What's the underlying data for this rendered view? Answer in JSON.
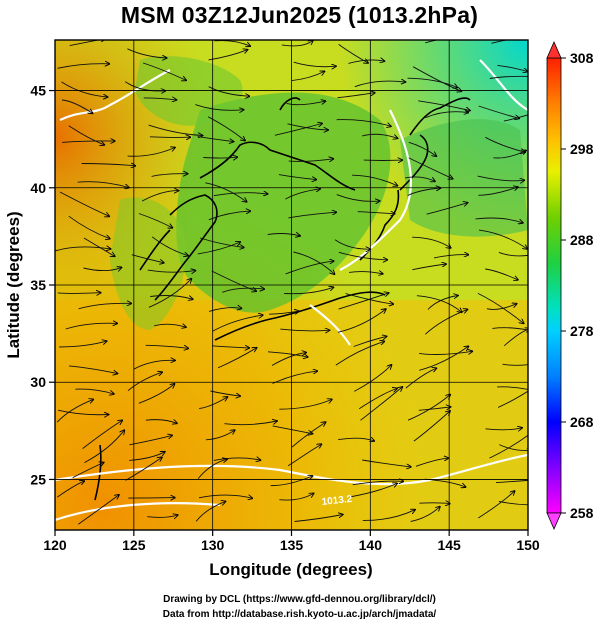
{
  "title": "MSM 03Z12Jun2025 (1013.2hPa)",
  "xaxis": {
    "label": "Longitude (degrees)",
    "ticks": [
      120,
      125,
      130,
      135,
      140,
      145,
      150
    ],
    "range": [
      120,
      150
    ]
  },
  "yaxis": {
    "label": "Latitude  (degrees)",
    "ticks": [
      25,
      30,
      35,
      40,
      45
    ],
    "range": [
      22.4,
      47.6
    ]
  },
  "colorbar": {
    "tick_labels": [
      "308",
      "298",
      "288",
      "278",
      "268",
      "258"
    ],
    "range": [
      258,
      308
    ],
    "colors": [
      "#ff00ff",
      "#8000ff",
      "#0000ff",
      "#0080ff",
      "#00c0ff",
      "#00e0e0",
      "#00e0a0",
      "#20d020",
      "#60d000",
      "#b0e000",
      "#ffff00",
      "#ffc000",
      "#ff8000",
      "#ff4000",
      "#ff0000"
    ]
  },
  "contour_labels": [
    "1013.2"
  ],
  "credits": {
    "line1": "Drawing by DCL (https://www.gfd-dennou.org/library/dcl/)",
    "line2": "Data from http://database.rish.kyoto-u.ac.jp/arch/jmadata/"
  }
}
